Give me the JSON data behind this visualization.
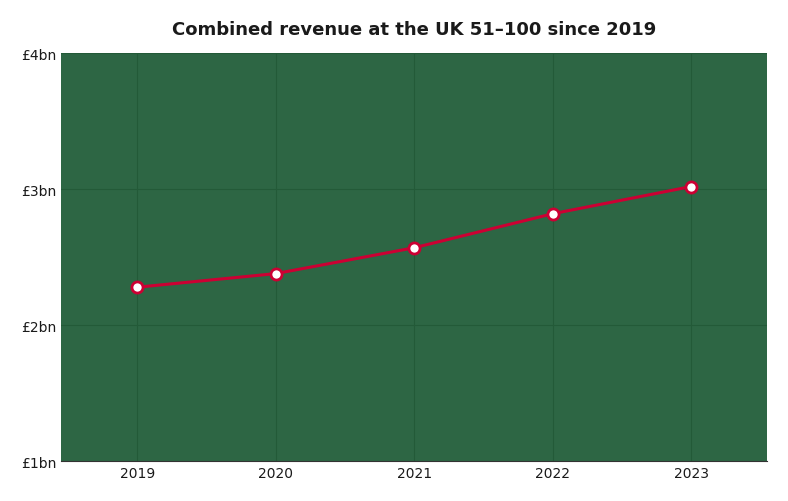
{
  "title": "Combined revenue at the UK 51–100 since 2019",
  "x_values": [
    2019,
    2020,
    2021,
    2022,
    2023
  ],
  "y_values": [
    2.28,
    2.38,
    2.57,
    2.82,
    3.02
  ],
  "ylim": [
    1.0,
    4.0
  ],
  "yticks": [
    1.0,
    2.0,
    3.0,
    4.0
  ],
  "ytick_labels": [
    "£1bn",
    "£2bn",
    "£3bn",
    "£4bn"
  ],
  "xtick_labels": [
    "2019",
    "2020",
    "2021",
    "2022",
    "2023"
  ],
  "line_color": "#cc0033",
  "marker_face_color": "#ffffff",
  "marker_edge_color": "#cc0033",
  "figure_bg_color": "#ffffff",
  "axes_bg_color": "#2d6644",
  "grid_color": "#235a38",
  "text_color": "#1a1a1a",
  "title_fontsize": 13,
  "tick_fontsize": 10,
  "line_width": 2.2,
  "marker_size": 8,
  "marker_edge_width": 2.0,
  "xlim": [
    2018.45,
    2023.55
  ]
}
